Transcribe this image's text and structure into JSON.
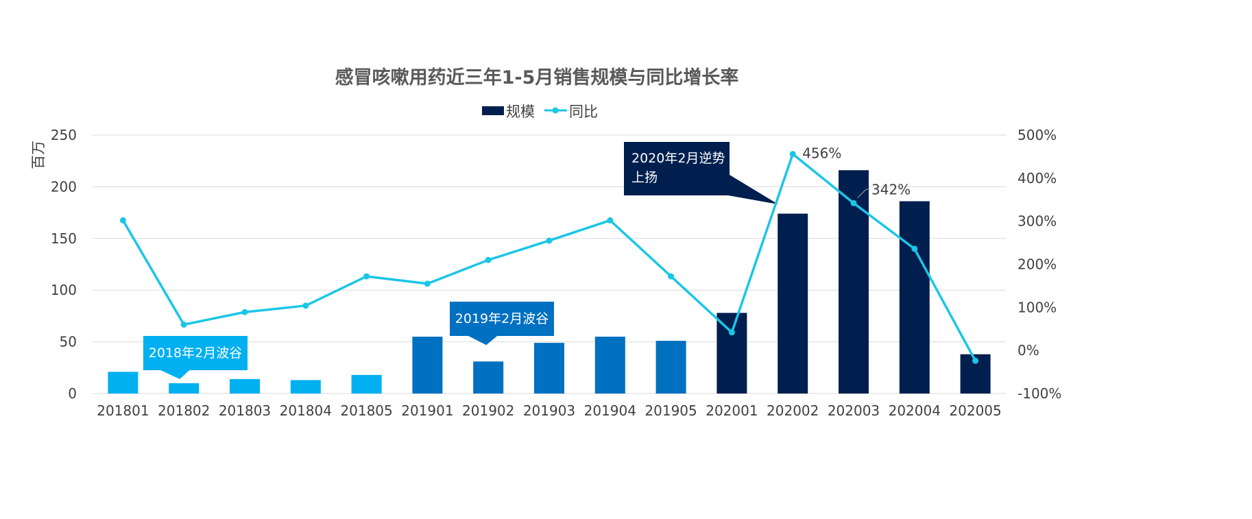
{
  "chart_data": {
    "type": "bar+line",
    "title": "感冒咳嗽用药近三年1-5月销售规模与同比增长率",
    "ylabel": "百万",
    "categories": [
      "201801",
      "201802",
      "201803",
      "201804",
      "201805",
      "201901",
      "201902",
      "201903",
      "201904",
      "201905",
      "202001",
      "202002",
      "202003",
      "202004",
      "202005"
    ],
    "y_left": {
      "min": 0,
      "max": 250,
      "ticks": [
        "0",
        "50",
        "100",
        "150",
        "200",
        "250"
      ],
      "tick_values": [
        0,
        50,
        100,
        150,
        200,
        250
      ]
    },
    "y_right": {
      "min": -100,
      "max": 500,
      "ticks": [
        "-100%",
        "0%",
        "100%",
        "200%",
        "300%",
        "400%",
        "500%"
      ],
      "tick_values": [
        -100,
        0,
        100,
        200,
        300,
        400,
        500
      ]
    },
    "grid": true,
    "legend_position": "top",
    "series": [
      {
        "name": "规模",
        "kind": "bar",
        "axis": "left",
        "values": [
          21,
          10,
          14,
          13,
          18,
          55,
          31,
          49,
          55,
          51,
          78,
          174,
          216,
          186,
          38
        ]
      },
      {
        "name": "同比",
        "kind": "line",
        "axis": "right",
        "values": [
          302,
          60,
          89,
          104,
          172,
          155,
          210,
          255,
          302,
          172,
          42,
          456,
          342,
          236,
          -24
        ]
      }
    ],
    "data_labels": [
      {
        "series": 1,
        "index": 11,
        "text": "456%"
      },
      {
        "series": 1,
        "index": 12,
        "text": "342%"
      }
    ],
    "annotations": [
      {
        "text": "2018年2月波谷",
        "color": "#00b0f0"
      },
      {
        "text": "2019年2月波谷",
        "color": "#0070c0"
      },
      {
        "lines": [
          "2020年2月逆势",
          "上扬"
        ],
        "color": "#001f4e"
      }
    ],
    "colors": {
      "bar_2018": "#00b0f0",
      "bar_2019": "#0070c0",
      "bar_2020": "#001f4e",
      "line": "#1ac6e6",
      "legend_bar": "#001f4e",
      "grid": "#d9d9d9",
      "text": "#404040",
      "title": "#595959"
    }
  }
}
